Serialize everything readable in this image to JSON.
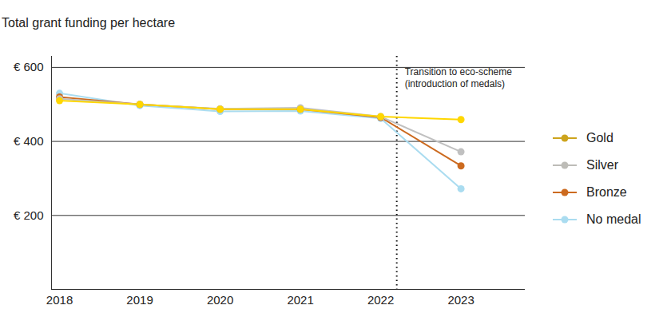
{
  "chart_data": {
    "type": "line",
    "title": "Total grant funding per hectare",
    "x": [
      2018,
      2019,
      2020,
      2021,
      2022,
      2023
    ],
    "series": [
      {
        "name": "Gold",
        "color": "#cda41c",
        "values": [
          510,
          500,
          487,
          487,
          467,
          459
        ]
      },
      {
        "name": "Silver",
        "color": "#bdbcb7",
        "values": [
          515,
          500,
          488,
          491,
          467,
          372
        ]
      },
      {
        "name": "Bronze",
        "color": "#cc6a1f",
        "values": [
          520,
          500,
          487,
          487,
          465,
          334
        ]
      },
      {
        "name": "No medal",
        "color": "#aadcf0",
        "values": [
          530,
          497,
          481,
          482,
          462,
          272
        ]
      }
    ],
    "xlim": [
      2017.9,
      2023.8
    ],
    "xticks": [
      2018,
      2019,
      2020,
      2021,
      2022,
      2023
    ],
    "ylim": [
      0,
      630
    ],
    "yticks": [
      {
        "value": 200,
        "label": "€ 200"
      },
      {
        "value": 400,
        "label": "€ 400"
      },
      {
        "value": 600,
        "label": "€ 600"
      }
    ],
    "grid": true,
    "legend": "right",
    "marker": "circle",
    "annotations": [
      {
        "x": 2022.2,
        "lines": [
          "Transition to eco-scheme",
          "(introduction of medals)"
        ],
        "line_style": "dotted"
      }
    ]
  }
}
